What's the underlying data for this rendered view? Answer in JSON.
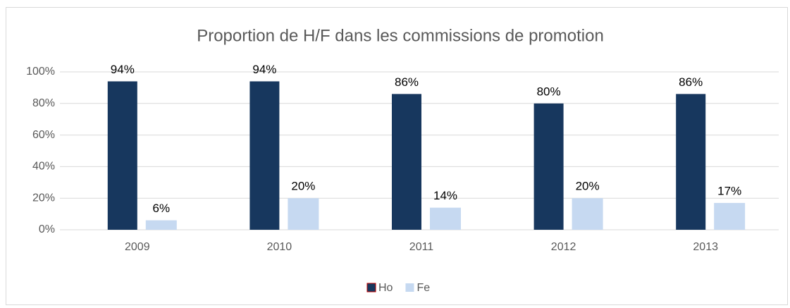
{
  "chart_data": {
    "type": "bar",
    "title": "Proportion de H/F dans les commissions de promotion",
    "categories": [
      "2009",
      "2010",
      "2011",
      "2012",
      "2013"
    ],
    "series": [
      {
        "name": "Ho",
        "color": "#17375e",
        "values": [
          94,
          94,
          86,
          80,
          86
        ],
        "value_labels": [
          "94%",
          "94%",
          "86%",
          "80%",
          "86%"
        ]
      },
      {
        "name": "Fe",
        "color": "#c6d9f1",
        "values": [
          6,
          20,
          14,
          20,
          17
        ],
        "value_labels": [
          "6%",
          "20%",
          "14%",
          "20%",
          "17%"
        ]
      }
    ],
    "ylim": [
      0,
      100
    ],
    "yticks": [
      {
        "value": 0,
        "label": "0%"
      },
      {
        "value": 20,
        "label": "20%"
      },
      {
        "value": 40,
        "label": "40%"
      },
      {
        "value": 60,
        "label": "60%"
      },
      {
        "value": 80,
        "label": "80%"
      },
      {
        "value": 100,
        "label": "100%"
      }
    ],
    "grid": true,
    "legend": "bottom"
  }
}
